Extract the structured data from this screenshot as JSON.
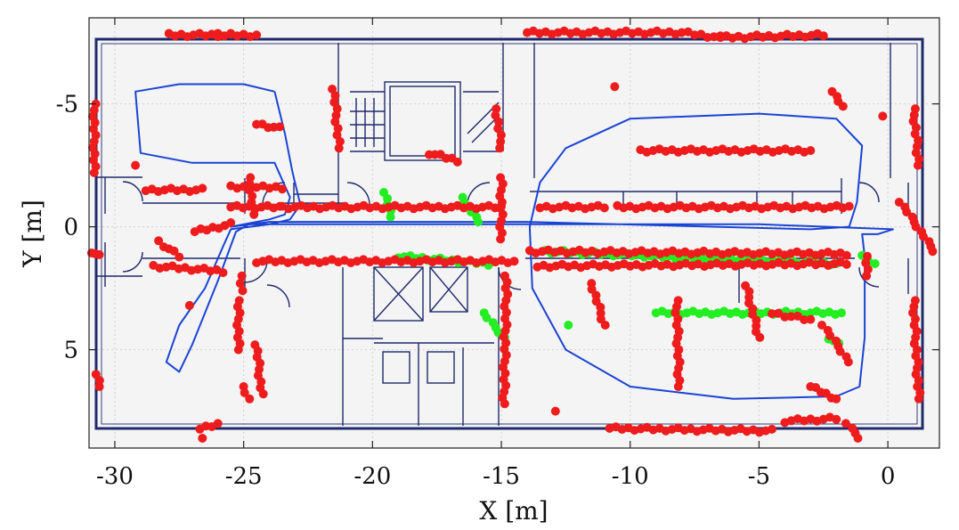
{
  "chart_data": {
    "type": "scatter",
    "title": "",
    "xlabel": "X [m]",
    "ylabel": "Y [m]",
    "xlim": [
      -31,
      2
    ],
    "ylim": [
      9,
      -8.5
    ],
    "y_reversed": true,
    "grid": true,
    "background": "floor plan drawing",
    "x_ticks": [
      -30,
      -25,
      -20,
      -15,
      -10,
      -5,
      0
    ],
    "x_tick_labels": [
      "-30",
      "-25",
      "-20",
      "-15",
      "-10",
      "-5",
      "0"
    ],
    "y_ticks": [
      -5,
      0,
      5
    ],
    "y_tick_labels": [
      "-5",
      "0",
      "5"
    ],
    "colors": {
      "plot_background": "#f4f4f4",
      "floor_plan": "#1f2a6b",
      "trajectory": "#1a44d4",
      "red_points": "#ee1c1c",
      "green_points": "#22ee22",
      "grid": "#d0d0d0"
    },
    "series": [
      {
        "color": "red",
        "segments": [
          [
            [
              -27.9,
              -7.8
            ],
            [
              -26.0,
              -7.8
            ],
            [
              -25.5,
              -7.8
            ],
            [
              -24.5,
              -7.8
            ]
          ],
          [
            [
              -14.0,
              -7.9
            ],
            [
              -8.0,
              -7.9
            ],
            [
              -6.5,
              -7.7
            ],
            [
              -2.5,
              -7.8
            ]
          ],
          [
            [
              -30.8,
              -5.0
            ],
            [
              -30.8,
              -2.2
            ]
          ],
          [
            [
              -29.2,
              -2.5
            ]
          ],
          [
            [
              -24.5,
              -4.2
            ],
            [
              -23.6,
              -4.0
            ]
          ],
          [
            [
              -21.5,
              -5.6
            ],
            [
              -21.3,
              -3.2
            ]
          ],
          [
            [
              -15.2,
              -4.8
            ],
            [
              -15.0,
              -3.2
            ]
          ],
          [
            [
              -17.8,
              -3.0
            ],
            [
              -16.7,
              -2.7
            ]
          ],
          [
            [
              -15.0,
              -2.0
            ],
            [
              -15.0,
              0.5
            ]
          ],
          [
            [
              -10.6,
              -5.7
            ]
          ],
          [
            [
              -2.1,
              -5.5
            ],
            [
              -1.8,
              -4.9
            ]
          ],
          [
            [
              -0.2,
              -4.5
            ]
          ],
          [
            [
              1.0,
              -4.8
            ],
            [
              1.2,
              -2.5
            ]
          ],
          [
            [
              -9.6,
              -3.1
            ],
            [
              -3.0,
              -3.1
            ]
          ],
          [
            [
              -28.8,
              -1.5
            ],
            [
              -26.6,
              -1.5
            ]
          ],
          [
            [
              -25.5,
              -1.6
            ],
            [
              -23.5,
              -1.6
            ]
          ],
          [
            [
              -25.5,
              -0.8
            ],
            [
              -23.6,
              -0.8
            ]
          ],
          [
            [
              -24.8,
              -2.0
            ],
            [
              -24.6,
              -0.5
            ]
          ],
          [
            [
              -23.5,
              -0.8
            ],
            [
              -15.0,
              -0.8
            ]
          ],
          [
            [
              -13.5,
              -0.8
            ],
            [
              -11.0,
              -0.8
            ]
          ],
          [
            [
              -10.5,
              -0.8
            ],
            [
              -1.5,
              -0.8
            ]
          ],
          [
            [
              -26.9,
              0.2
            ],
            [
              -25.5,
              -0.1
            ]
          ],
          [
            [
              -30.9,
              1.0
            ],
            [
              -30.6,
              1.2
            ]
          ],
          [
            [
              -28.3,
              0.6
            ],
            [
              -27.5,
              1.2
            ]
          ],
          [
            [
              -25.1,
              2.0
            ],
            [
              -25.1,
              2.6
            ]
          ],
          [
            [
              0.5,
              -1.0
            ],
            [
              1.8,
              1.0
            ]
          ],
          [
            [
              -0.8,
              1.2
            ],
            [
              -0.8,
              2.0
            ]
          ],
          [
            [
              -24.5,
              1.4
            ],
            [
              -14.5,
              1.4
            ]
          ],
          [
            [
              -28.5,
              1.6
            ],
            [
              -25.8,
              1.8
            ]
          ],
          [
            [
              -25.2,
              3.0
            ],
            [
              -25.2,
              5.0
            ]
          ],
          [
            [
              -24.5,
              4.8
            ],
            [
              -24.3,
              6.8
            ]
          ],
          [
            [
              -25.0,
              6.5
            ],
            [
              -24.8,
              7.0
            ]
          ],
          [
            [
              -27.1,
              3.2
            ]
          ],
          [
            [
              -13.9,
              1.0
            ],
            [
              -1.6,
              1.1
            ]
          ],
          [
            [
              -13.6,
              1.6
            ],
            [
              -1.6,
              1.5
            ]
          ],
          [
            [
              -14.8,
              2.0
            ],
            [
              -14.9,
              7.2
            ]
          ],
          [
            [
              -11.5,
              2.3
            ],
            [
              -11.0,
              4.0
            ]
          ],
          [
            [
              -8.2,
              3.0
            ],
            [
              -8.1,
              6.5
            ]
          ],
          [
            [
              -5.5,
              2.4
            ],
            [
              -5.0,
              4.5
            ]
          ],
          [
            [
              -4.5,
              3.5
            ],
            [
              -3.0,
              3.8
            ]
          ],
          [
            [
              -2.5,
              4.0
            ],
            [
              -1.5,
              5.5
            ]
          ],
          [
            [
              -3.0,
              6.5
            ],
            [
              -2.0,
              7.0
            ]
          ],
          [
            [
              1.0,
              3.0
            ],
            [
              1.2,
              7.0
            ]
          ],
          [
            [
              -30.7,
              6.0
            ],
            [
              -30.6,
              6.5
            ]
          ],
          [
            [
              -26.7,
              8.2
            ],
            [
              -26.0,
              8.0
            ]
          ],
          [
            [
              -26.6,
              8.6
            ]
          ],
          [
            [
              -10.8,
              8.2
            ],
            [
              -4.5,
              8.3
            ]
          ],
          [
            [
              -4.0,
              7.9
            ],
            [
              -2.0,
              7.8
            ]
          ],
          [
            [
              -1.6,
              8.0
            ],
            [
              -1.1,
              8.6
            ]
          ],
          [
            [
              -12.9,
              7.5
            ]
          ]
        ]
      },
      {
        "color": "green",
        "segments": [
          [
            [
              -19.5,
              -1.4
            ],
            [
              -19.3,
              -0.4
            ]
          ],
          [
            [
              -16.5,
              -1.2
            ],
            [
              -15.9,
              -0.2
            ]
          ],
          [
            [
              -19.0,
              1.2
            ],
            [
              -15.5,
              1.5
            ]
          ],
          [
            [
              -13.3,
              1.0
            ],
            [
              -2.0,
              1.5
            ]
          ],
          [
            [
              -15.7,
              3.5
            ],
            [
              -14.9,
              4.5
            ]
          ],
          [
            [
              -12.4,
              4.0
            ]
          ],
          [
            [
              -9.0,
              3.5
            ],
            [
              -1.8,
              3.5
            ]
          ],
          [
            [
              -2.3,
              4.5
            ],
            [
              -1.9,
              4.8
            ]
          ],
          [
            [
              -1.0,
              1.2
            ],
            [
              -0.5,
              1.5
            ]
          ]
        ]
      },
      {
        "color": "blue",
        "style": "line",
        "path": [
          [
            -23.8,
            -5.5
          ],
          [
            -23.4,
            -3.8
          ],
          [
            -23.1,
            -2.2
          ],
          [
            -22.8,
            -0.9
          ],
          [
            -23.2,
            -0.3
          ],
          [
            -24.0,
            -0.1
          ],
          [
            -25.5,
            0.1
          ],
          [
            -25.8,
            0.8
          ],
          [
            -26.5,
            2.5
          ],
          [
            -27.5,
            4.0
          ],
          [
            -28.0,
            5.5
          ],
          [
            -27.5,
            5.9
          ],
          [
            -27.0,
            4.8
          ],
          [
            -26.0,
            2.2
          ],
          [
            -25.3,
            0.2
          ],
          [
            -24.8,
            -0.1
          ],
          [
            -20.0,
            -0.1
          ],
          [
            -15.0,
            -0.1
          ],
          [
            -12.0,
            -0.1
          ],
          [
            -5.0,
            -0.1
          ],
          [
            0.2,
            0.1
          ],
          [
            -0.4,
            0.3
          ],
          [
            -1.0,
            0.3
          ],
          [
            -0.9,
            1.2
          ],
          [
            -0.9,
            4.5
          ],
          [
            -1.1,
            6.5
          ],
          [
            -2.0,
            6.9
          ],
          [
            -6.0,
            7.0
          ],
          [
            -10.0,
            6.5
          ],
          [
            -12.5,
            5.0
          ],
          [
            -13.8,
            2.5
          ],
          [
            -13.9,
            0.0
          ],
          [
            -13.5,
            -1.8
          ],
          [
            -12.5,
            -3.2
          ],
          [
            -10.0,
            -4.4
          ],
          [
            -5.0,
            -4.6
          ],
          [
            -2.0,
            -4.4
          ],
          [
            -1.0,
            -3.3
          ],
          [
            -1.2,
            -1.0
          ],
          [
            -1.5,
            0.0
          ],
          [
            -3.0,
            0.1
          ],
          [
            -14.0,
            -0.2
          ],
          [
            -24.0,
            -0.2
          ],
          [
            -25.5,
            0.0
          ],
          [
            -24.0,
            -0.3
          ],
          [
            -23.4,
            -0.5
          ],
          [
            -23.2,
            -1.2
          ],
          [
            -23.8,
            -2.6
          ],
          [
            -27.0,
            -2.6
          ],
          [
            -29.0,
            -3.0
          ],
          [
            -29.2,
            -5.5
          ],
          [
            -27.5,
            -5.8
          ],
          [
            -25.0,
            -5.8
          ],
          [
            -23.8,
            -5.5
          ]
        ]
      }
    ]
  }
}
